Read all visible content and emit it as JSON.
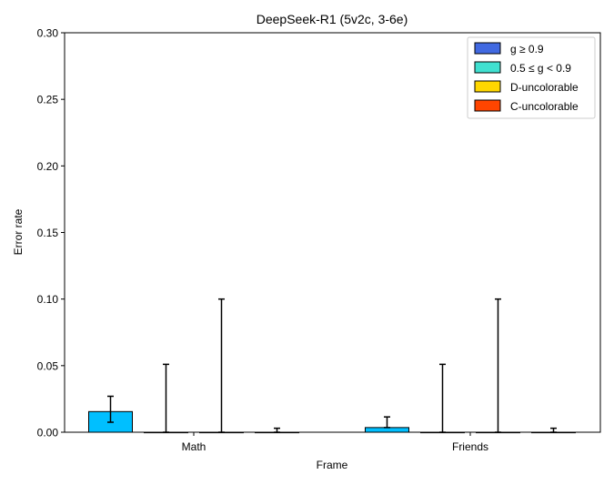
{
  "chart_data": {
    "type": "bar",
    "title": "DeepSeek-R1 (5v2c, 3-6e)",
    "xlabel": "Frame",
    "ylabel": "Error rate",
    "ylim": [
      0,
      0.3
    ],
    "yticks": [
      "0.00",
      "0.05",
      "0.10",
      "0.15",
      "0.20",
      "0.25",
      "0.30"
    ],
    "categories": [
      "Math",
      "Friends"
    ],
    "grid": false,
    "legend_position": "top-right",
    "series": [
      {
        "name": "g ≥ 0.9",
        "legend_color": "#4169e1",
        "bar_color": "#00bfff",
        "values": [
          0.0155,
          0.0035
        ],
        "err_low": [
          0.0075,
          0.0035
        ],
        "err_high": [
          0.027,
          0.0115
        ]
      },
      {
        "name": "0.5 ≤ g < 0.9",
        "legend_color": "#40e0d0",
        "bar_color": "#40e0d0",
        "values": [
          0,
          0
        ],
        "err_low": [
          0,
          0
        ],
        "err_high": [
          0.051,
          0.051
        ]
      },
      {
        "name": "D-uncolorable",
        "legend_color": "#ffd700",
        "bar_color": "#ffd700",
        "values": [
          0,
          0
        ],
        "err_low": [
          0,
          0
        ],
        "err_high": [
          0.1,
          0.1
        ]
      },
      {
        "name": "C-uncolorable",
        "legend_color": "#ff4500",
        "bar_color": "#ff4500",
        "values": [
          0,
          0
        ],
        "err_low": [
          0,
          0
        ],
        "err_high": [
          0.003,
          0.003
        ]
      }
    ]
  }
}
